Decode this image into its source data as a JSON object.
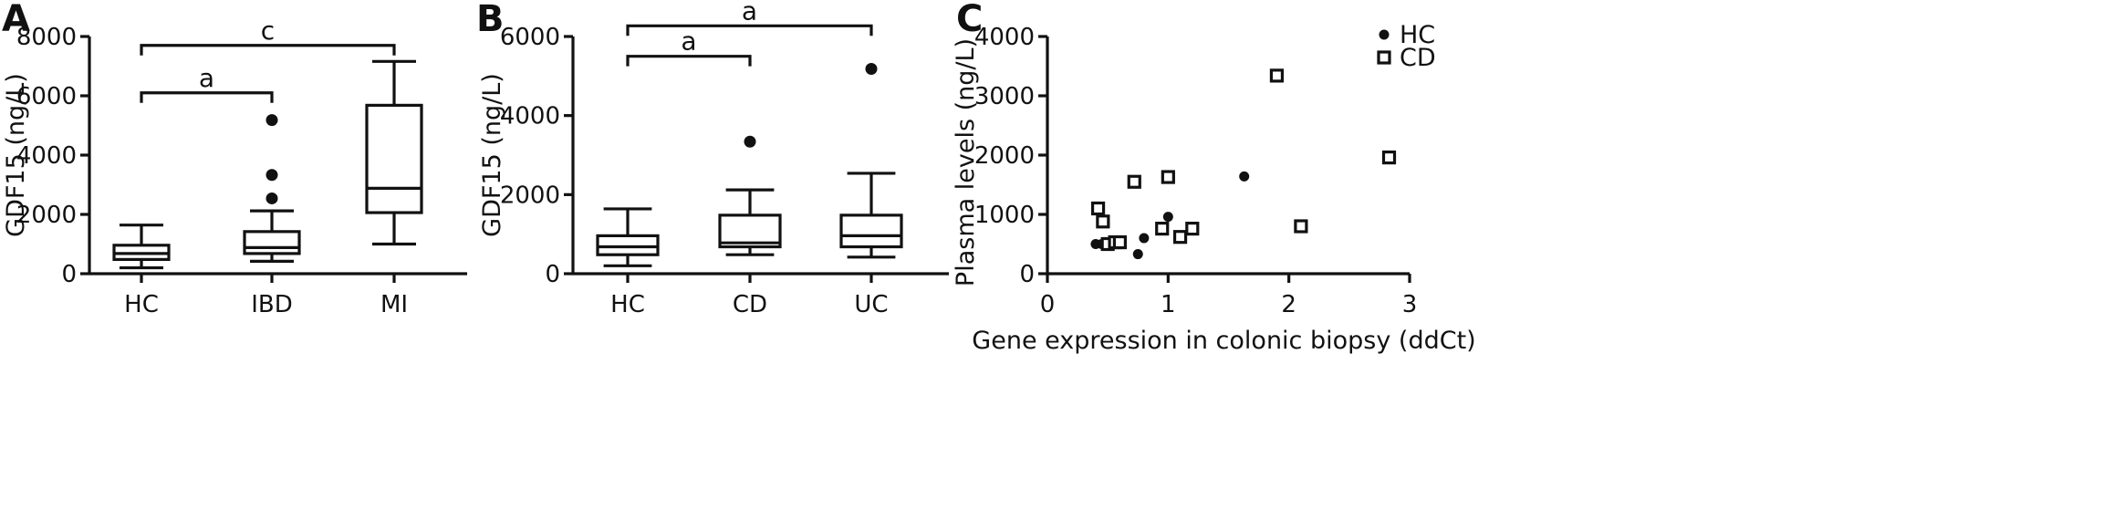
{
  "chart_data": [
    {
      "panel": "A",
      "type": "box",
      "ylabel": "GDF15 (ng/L)",
      "xlabel": "",
      "ylim": [
        0,
        8000
      ],
      "yticks": [
        0,
        2000,
        4000,
        6000,
        8000
      ],
      "categories": [
        "HC",
        "IBD",
        "MI"
      ],
      "boxes": [
        {
          "min": 200,
          "q1": 480,
          "median": 680,
          "q3": 960,
          "max": 1640,
          "outliers": []
        },
        {
          "min": 420,
          "q1": 680,
          "median": 880,
          "q3": 1420,
          "max": 2120,
          "outliers": [
            2540,
            3330,
            5180
          ]
        },
        {
          "min": 1000,
          "q1": 2060,
          "median": 2880,
          "q3": 5680,
          "max": 7160,
          "outliers": []
        }
      ],
      "brackets": [
        {
          "from": "HC",
          "to": "IBD",
          "label": "a",
          "y": 6100
        },
        {
          "from": "HC",
          "to": "MI",
          "label": "c",
          "y": 7700
        }
      ]
    },
    {
      "panel": "B",
      "type": "box",
      "ylabel": "GDF15 (ng/L)",
      "xlabel": "",
      "ylim": [
        0,
        6000
      ],
      "yticks": [
        0,
        2000,
        4000,
        6000
      ],
      "categories": [
        "HC",
        "CD",
        "UC"
      ],
      "boxes": [
        {
          "min": 200,
          "q1": 480,
          "median": 680,
          "q3": 960,
          "max": 1640,
          "outliers": []
        },
        {
          "min": 480,
          "q1": 680,
          "median": 780,
          "q3": 1480,
          "max": 2120,
          "outliers": [
            3340
          ]
        },
        {
          "min": 420,
          "q1": 680,
          "median": 960,
          "q3": 1480,
          "max": 2540,
          "outliers": [
            5180
          ]
        }
      ],
      "brackets": [
        {
          "from": "HC",
          "to": "CD",
          "label": "a",
          "y": 5500
        },
        {
          "from": "HC",
          "to": "UC",
          "label": "a",
          "y": 6270
        }
      ]
    },
    {
      "panel": "C",
      "type": "scatter",
      "xlabel": "Gene expression in colonic biopsy (ddCt)",
      "ylabel": "Plasma levels (ng/L)",
      "xlim": [
        0,
        3
      ],
      "ylim": [
        0,
        4000
      ],
      "xticks": [
        0,
        1,
        2,
        3
      ],
      "yticks": [
        0,
        1000,
        2000,
        3000,
        4000
      ],
      "legend": "top-right",
      "series": [
        {
          "name": "HC",
          "marker": "filled-circle",
          "points": [
            [
              0.4,
              500
            ],
            [
              0.45,
              500
            ],
            [
              0.75,
              330
            ],
            [
              0.8,
              600
            ],
            [
              1.0,
              960
            ],
            [
              1.63,
              1640
            ]
          ]
        },
        {
          "name": "CD",
          "marker": "open-square",
          "points": [
            [
              0.42,
              1100
            ],
            [
              0.46,
              880
            ],
            [
              0.5,
              500
            ],
            [
              0.56,
              530
            ],
            [
              0.6,
              530
            ],
            [
              0.72,
              1550
            ],
            [
              0.95,
              760
            ],
            [
              1.0,
              1630
            ],
            [
              1.1,
              620
            ],
            [
              1.2,
              760
            ],
            [
              1.9,
              3340
            ],
            [
              2.1,
              800
            ],
            [
              2.83,
              1960
            ]
          ]
        }
      ]
    }
  ]
}
